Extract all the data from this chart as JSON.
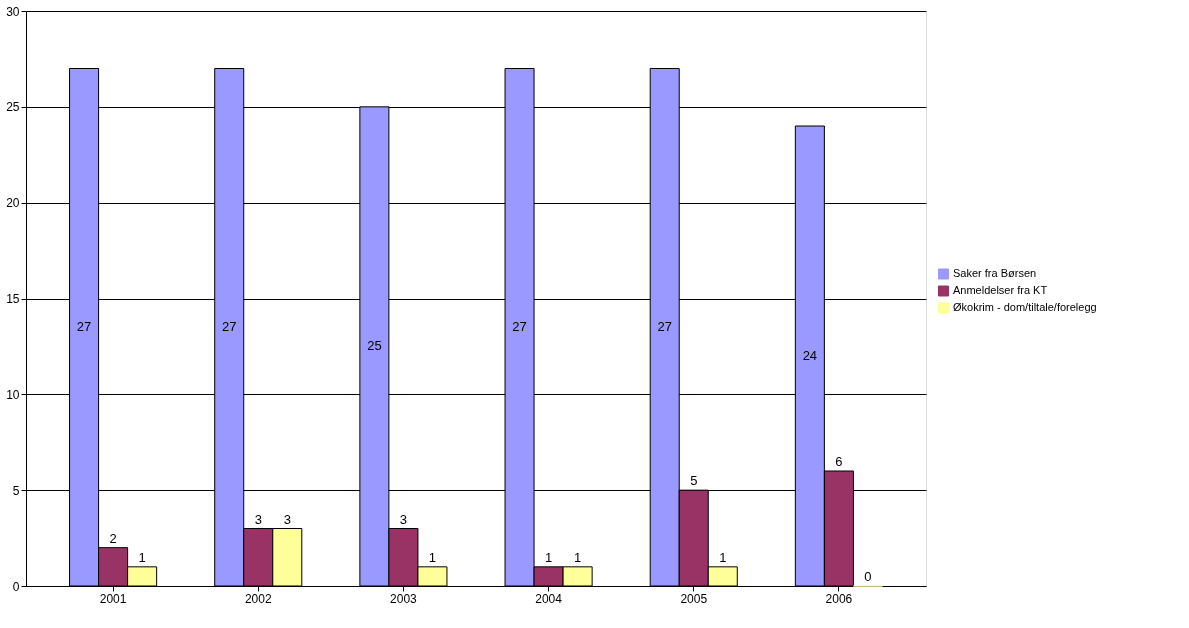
{
  "chart_data": {
    "type": "bar",
    "categories": [
      "2001",
      "2002",
      "2003",
      "2004",
      "2005",
      "2006"
    ],
    "series": [
      {
        "name": "Saker fra Børsen",
        "color": "#9999ff",
        "values": [
          27,
          27,
          25,
          27,
          27,
          24
        ]
      },
      {
        "name": "Anmeldelser fra KT",
        "color": "#993366",
        "values": [
          2,
          3,
          3,
          1,
          5,
          6
        ]
      },
      {
        "name": "Økokrim - dom/tiltale/forelegg",
        "color": "#ffff99",
        "values": [
          1,
          3,
          1,
          1,
          1,
          0
        ]
      }
    ],
    "ylim": [
      0,
      30
    ],
    "yticks": [
      0,
      5,
      10,
      15,
      20,
      25,
      30
    ],
    "grid": "y",
    "legend": "right",
    "data_labels": true
  }
}
